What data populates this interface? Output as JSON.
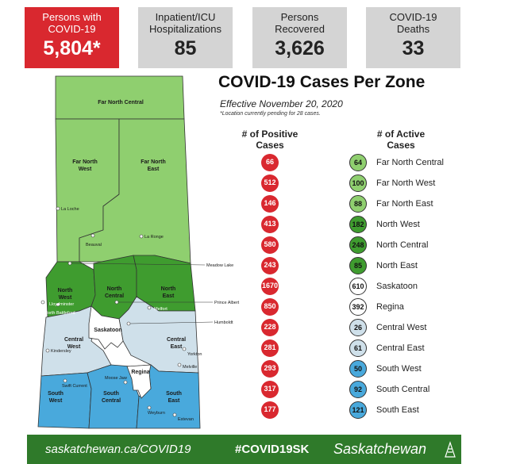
{
  "stats": [
    {
      "label_1": "Persons with",
      "label_2": "COVID-19",
      "value": "5,804*"
    },
    {
      "label_1": "Inpatient/ICU",
      "label_2": "Hospitalizations",
      "value": "85"
    },
    {
      "label_1": "Persons",
      "label_2": "Recovered",
      "value": "3,626"
    },
    {
      "label_1": "COVID-19",
      "label_2": "Deaths",
      "value": "33"
    }
  ],
  "title": "COVID-19 Cases Per Zone",
  "effective": "Effective November 20, 2020",
  "note": "*Location currently pending for 28 cases.",
  "columns": {
    "positive_1": "# of Positive",
    "positive_2": "Cases",
    "active_1": "# of Active",
    "active_2": "Cases"
  },
  "zones": [
    {
      "name": "Far North Central",
      "positive": "66",
      "active": "64",
      "color": "#8fcf6f"
    },
    {
      "name": "Far North West",
      "positive": "512",
      "active": "100",
      "color": "#8fcf6f"
    },
    {
      "name": "Far North East",
      "positive": "146",
      "active": "88",
      "color": "#8fcf6f"
    },
    {
      "name": "North West",
      "positive": "413",
      "active": "182",
      "color": "#3f9c2f"
    },
    {
      "name": "North Central",
      "positive": "580",
      "active": "248",
      "color": "#3f9c2f"
    },
    {
      "name": "North East",
      "positive": "243",
      "active": "85",
      "color": "#3f9c2f"
    },
    {
      "name": "Saskatoon",
      "positive": "1670",
      "active": "610",
      "color": "#ffffff"
    },
    {
      "name": "Regina",
      "positive": "850",
      "active": "392",
      "color": "#ffffff"
    },
    {
      "name": "Central West",
      "positive": "228",
      "active": "26",
      "color": "#cfe0ea"
    },
    {
      "name": "Central East",
      "positive": "281",
      "active": "61",
      "color": "#cfe0ea"
    },
    {
      "name": "South West",
      "positive": "293",
      "active": "50",
      "color": "#49a9dc"
    },
    {
      "name": "South Central",
      "positive": "317",
      "active": "92",
      "color": "#49a9dc"
    },
    {
      "name": "South East",
      "positive": "177",
      "active": "121",
      "color": "#49a9dc"
    }
  ],
  "colors": {
    "positive_dot": "#d9282f",
    "stat_red": "#d9282f",
    "footer": "#2f7a2a"
  },
  "map": {
    "zones": {
      "far_north_central": "Far North Central",
      "far_north_west_1": "Far North",
      "far_north_west_2": "West",
      "far_north_east_1": "Far North",
      "far_north_east_2": "East",
      "north_west_1": "North",
      "north_west_2": "West",
      "north_central_1": "North",
      "north_central_2": "Central",
      "north_east_1": "North",
      "north_east_2": "East",
      "saskatoon": "Saskatoon",
      "central_west_1": "Central",
      "central_west_2": "West",
      "central_east_1": "Central",
      "central_east_2": "East",
      "regina": "Regina",
      "south_west_1": "South",
      "south_west_2": "West",
      "south_central_1": "South",
      "south_central_2": "Central",
      "south_east_1": "South",
      "south_east_2": "East"
    },
    "cities": {
      "la_loche": "La Loche",
      "beauval": "Beauval",
      "la_ronge": "La Ronge",
      "meadow_lake": "Meadow Lake",
      "lloydminster": "Lloydminster",
      "north_battleford": "North Battleford",
      "prince_albert": "Prince Albert",
      "melfort": "Melfort",
      "humboldt": "Humboldt",
      "kindersley": "Kindersley",
      "yorkton": "Yorkton",
      "melville": "Melville",
      "swift_current": "Swift Current",
      "moose_jaw": "Moose Jaw",
      "weyburn": "Weyburn",
      "estevan": "Estevan"
    }
  },
  "footer": {
    "url": "saskatchewan.ca/COVID19",
    "hashtag": "#COVID19SK",
    "brand": "Saskatchewan"
  }
}
